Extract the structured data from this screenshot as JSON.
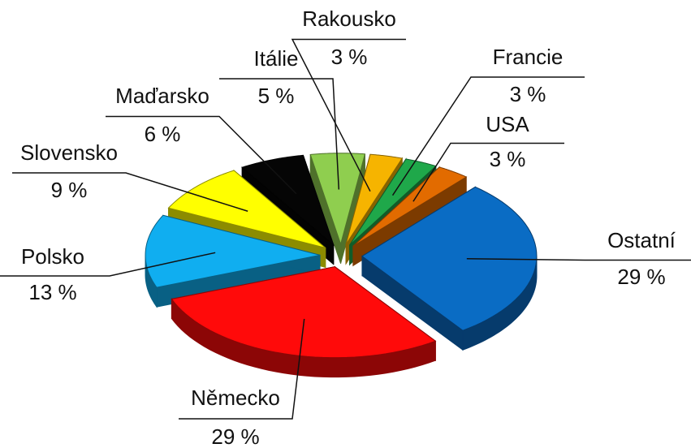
{
  "chart_data": {
    "type": "pie",
    "categories": [
      "Rakousko",
      "Francie",
      "USA",
      "Ostatní",
      "Německo",
      "Polsko",
      "Slovensko",
      "Maďarsko",
      "Itálie"
    ],
    "values": [
      3,
      3,
      3,
      29,
      29,
      13,
      9,
      6,
      5
    ],
    "value_labels": [
      "3 %",
      "3 %",
      "3 %",
      "29 %",
      "29 %",
      "13 %",
      "9 %",
      "6 %",
      "5 %"
    ],
    "colors": [
      "#f6b400",
      "#1fa84a",
      "#e26b00",
      "#0a6cc4",
      "#ff0a0a",
      "#10aef0",
      "#ffff00",
      "#050505",
      "#8fce4f"
    ]
  }
}
